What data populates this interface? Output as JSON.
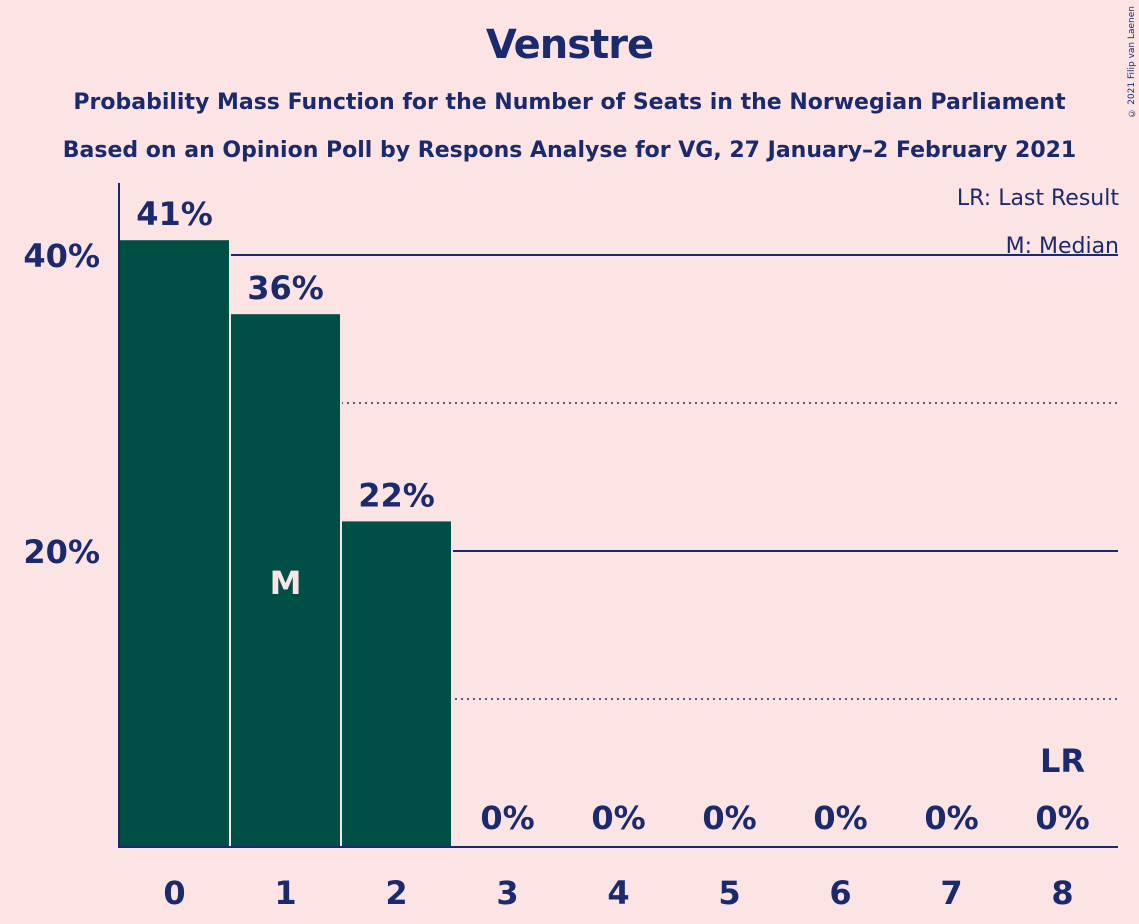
{
  "chart_data": {
    "type": "bar",
    "title": "Venstre",
    "subtitle_lines": [
      "Probability Mass Function for the Number of Seats in the Norwegian Parliament",
      "Based on an Opinion Poll by Respons Analyse for VG, 27 January–2 February 2021"
    ],
    "categories": [
      "0",
      "1",
      "2",
      "3",
      "4",
      "5",
      "6",
      "7",
      "8"
    ],
    "values": [
      41,
      36,
      22,
      0,
      0,
      0,
      0,
      0,
      0
    ],
    "value_labels": [
      "41%",
      "36%",
      "22%",
      "0%",
      "0%",
      "0%",
      "0%",
      "0%",
      "0%"
    ],
    "ylim": [
      0,
      45
    ],
    "y_ticks": [
      {
        "value": 20,
        "label": "20%",
        "style": "solid"
      },
      {
        "value": 40,
        "label": "40%",
        "style": "solid"
      }
    ],
    "minor_grid": [
      10,
      30
    ],
    "median_index": 1,
    "median_marker": "M",
    "last_result_index": 8,
    "last_result_marker": "LR",
    "legend": [
      "LR: Last Result",
      "M: Median"
    ],
    "legend_position": "top-right",
    "bar_color": "#004f47"
  },
  "copyright": "© 2021 Filip van Laenen"
}
